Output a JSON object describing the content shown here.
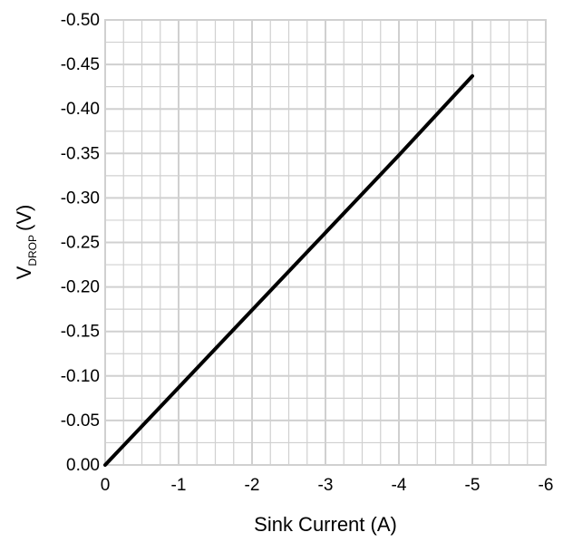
{
  "chart_data": {
    "type": "line",
    "xlabel": "Sink Current (A)",
    "ylabel": {
      "main": "V",
      "subscript": "DROP",
      "unit": "(V)"
    },
    "xlim": [
      0,
      -6
    ],
    "ylim": [
      0.0,
      -0.5
    ],
    "x_ticks": [
      0,
      -1,
      -2,
      -3,
      -4,
      -5,
      -6
    ],
    "x_tick_labels": [
      "0",
      "-1",
      "-2",
      "-3",
      "-4",
      "-5",
      "-6"
    ],
    "y_ticks": [
      0.0,
      -0.05,
      -0.1,
      -0.15,
      -0.2,
      -0.25,
      -0.3,
      -0.35,
      -0.4,
      -0.45,
      -0.5
    ],
    "y_tick_labels": [
      "0.00",
      "-0.05",
      "-0.10",
      "-0.15",
      "-0.20",
      "-0.25",
      "-0.30",
      "-0.35",
      "-0.40",
      "-0.45",
      "-0.50"
    ],
    "grid": true,
    "minor_grid_x_per_major": 4,
    "minor_grid_y_per_major": 2,
    "series": [
      {
        "color": "#000000",
        "x": [
          0,
          -1,
          -2,
          -3,
          -4,
          -5
        ],
        "y": [
          0.0,
          -0.087,
          -0.174,
          -0.261,
          -0.348,
          -0.437
        ]
      }
    ],
    "colors": {
      "line": "#000000",
      "grid": "#d0d0d0",
      "background": "#ffffff"
    }
  }
}
